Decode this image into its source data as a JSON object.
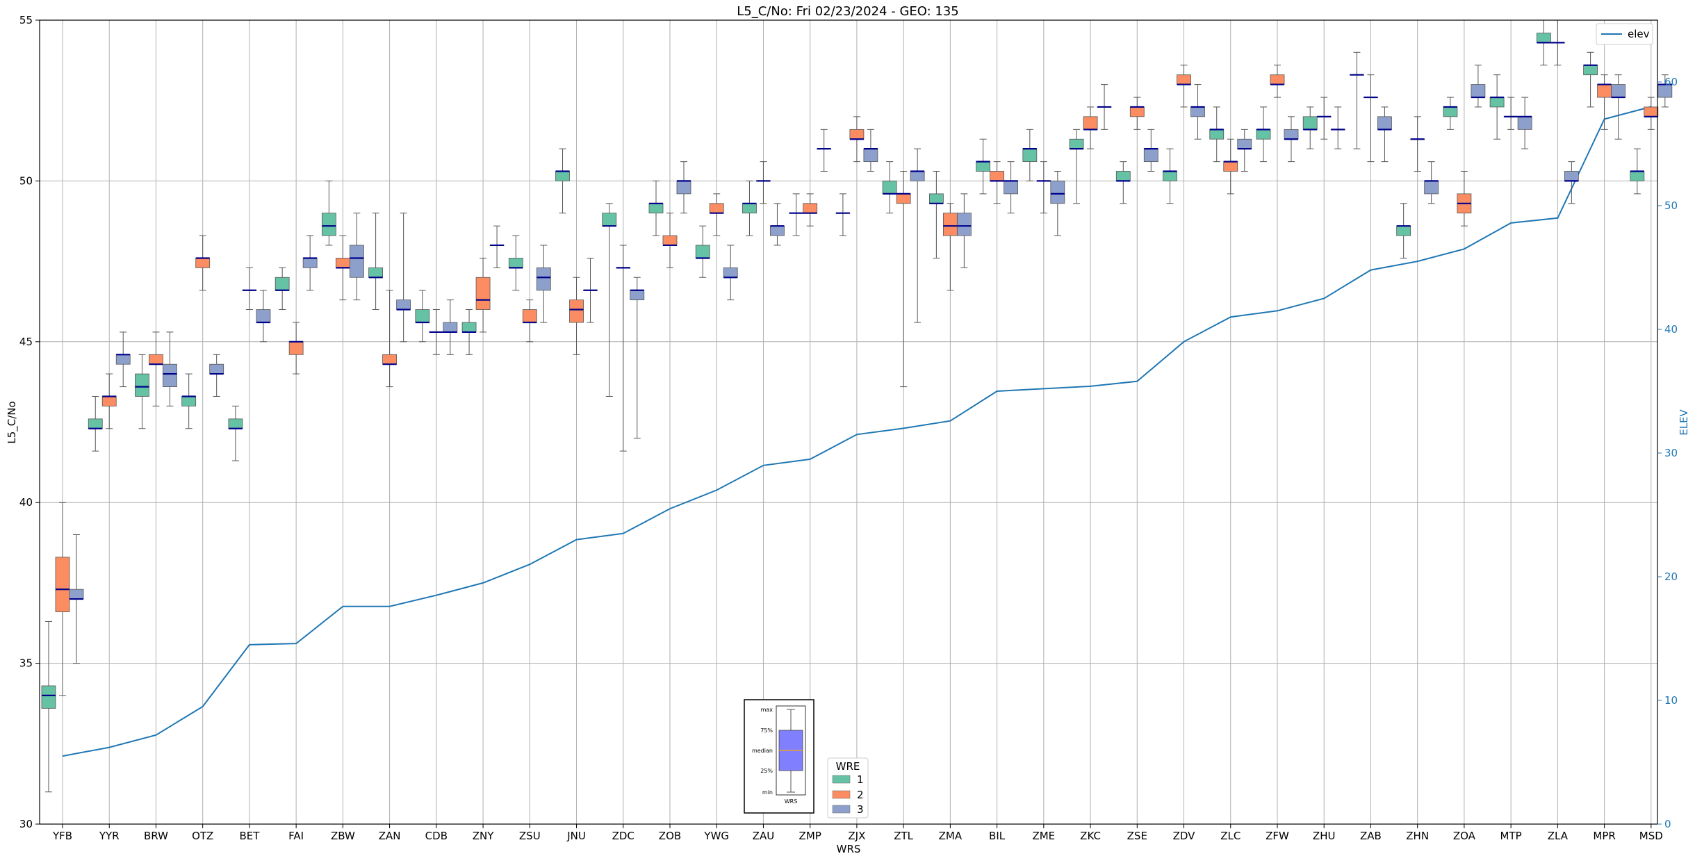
{
  "chart_data": {
    "type": "box",
    "title": "L5_C/No: Fri 02/23/2024 - GEO: 135",
    "xlabel": "WRS",
    "ylabel": "L5_C/No",
    "ylabel_right": "ELEV",
    "ylim": [
      30,
      55
    ],
    "ylim_right": [
      0,
      65
    ],
    "yticks": [
      "30",
      "35",
      "40",
      "45",
      "50",
      "55"
    ],
    "yticks_right": [
      "0",
      "10",
      "20",
      "30",
      "40",
      "50",
      "60"
    ],
    "grid": true,
    "categories": [
      "YFB",
      "YYR",
      "BRW",
      "OTZ",
      "BET",
      "FAI",
      "ZBW",
      "ZAN",
      "CDB",
      "ZNY",
      "ZSU",
      "JNU",
      "ZDC",
      "ZOB",
      "YWG",
      "ZAU",
      "ZMP",
      "ZJX",
      "ZTL",
      "ZMA",
      "BIL",
      "ZME",
      "ZKC",
      "ZSE",
      "ZDV",
      "ZLC",
      "ZFW",
      "ZHU",
      "ZAB",
      "ZHN",
      "ZOA",
      "MTP",
      "ZLA",
      "MPR",
      "MSD"
    ],
    "wre_colors": {
      "1": "#66c2a5",
      "2": "#fc8d62",
      "3": "#8da0cb"
    },
    "median_color": "#00008b",
    "legend": {
      "title": "WRE",
      "entries": [
        {
          "label": "1",
          "color": "#66c2a5"
        },
        {
          "label": "2",
          "color": "#fc8d62"
        },
        {
          "label": "3",
          "color": "#8da0cb"
        }
      ],
      "placement": "lower-center"
    },
    "legend_elev": {
      "label": "elev",
      "color": "#1f77b4",
      "placement": "top-right"
    },
    "key_box": {
      "labels": [
        "max",
        "75%",
        "median",
        "25%",
        "min"
      ],
      "xlabel": "WRS",
      "color": "#8080ff",
      "median_color": "#ffa500"
    },
    "boxes": [
      {
        "cat": "YFB",
        "wre": 1,
        "min": 31.0,
        "q1": 33.6,
        "med": 34.0,
        "q3": 34.3,
        "max": 36.3
      },
      {
        "cat": "YFB",
        "wre": 2,
        "min": 34.0,
        "q1": 36.6,
        "med": 37.3,
        "q3": 38.3,
        "max": 40.0
      },
      {
        "cat": "YFB",
        "wre": 3,
        "min": 35.0,
        "q1": 37.0,
        "med": 37.0,
        "q3": 37.3,
        "max": 39.0
      },
      {
        "cat": "YYR",
        "wre": 1,
        "min": 41.6,
        "q1": 42.3,
        "med": 42.3,
        "q3": 42.6,
        "max": 43.3
      },
      {
        "cat": "YYR",
        "wre": 2,
        "min": 42.3,
        "q1": 43.0,
        "med": 43.3,
        "q3": 43.3,
        "max": 44.0
      },
      {
        "cat": "YYR",
        "wre": 3,
        "min": 43.6,
        "q1": 44.3,
        "med": 44.6,
        "q3": 44.6,
        "max": 45.3
      },
      {
        "cat": "BRW",
        "wre": 1,
        "min": 42.3,
        "q1": 43.3,
        "med": 43.6,
        "q3": 44.0,
        "max": 44.6
      },
      {
        "cat": "BRW",
        "wre": 2,
        "min": 43.0,
        "q1": 44.3,
        "med": 44.3,
        "q3": 44.6,
        "max": 45.3
      },
      {
        "cat": "BRW",
        "wre": 3,
        "min": 43.0,
        "q1": 43.6,
        "med": 44.0,
        "q3": 44.3,
        "max": 45.3
      },
      {
        "cat": "OTZ",
        "wre": 1,
        "min": 42.3,
        "q1": 43.0,
        "med": 43.3,
        "q3": 43.3,
        "max": 44.0
      },
      {
        "cat": "OTZ",
        "wre": 2,
        "min": 46.6,
        "q1": 47.3,
        "med": 47.6,
        "q3": 47.6,
        "max": 48.3
      },
      {
        "cat": "OTZ",
        "wre": 3,
        "min": 43.3,
        "q1": 44.0,
        "med": 44.0,
        "q3": 44.3,
        "max": 44.6
      },
      {
        "cat": "BET",
        "wre": 1,
        "min": 41.3,
        "q1": 42.3,
        "med": 42.3,
        "q3": 42.6,
        "max": 43.0
      },
      {
        "cat": "BET",
        "wre": 2,
        "min": 46.0,
        "q1": 46.6,
        "med": 46.6,
        "q3": 46.6,
        "max": 47.3
      },
      {
        "cat": "BET",
        "wre": 3,
        "min": 45.0,
        "q1": 45.6,
        "med": 45.6,
        "q3": 46.0,
        "max": 46.6
      },
      {
        "cat": "FAI",
        "wre": 1,
        "min": 46.0,
        "q1": 46.6,
        "med": 46.6,
        "q3": 47.0,
        "max": 47.3
      },
      {
        "cat": "FAI",
        "wre": 2,
        "min": 44.0,
        "q1": 44.6,
        "med": 45.0,
        "q3": 45.0,
        "max": 45.6
      },
      {
        "cat": "FAI",
        "wre": 3,
        "min": 46.6,
        "q1": 47.3,
        "med": 47.6,
        "q3": 47.6,
        "max": 48.3
      },
      {
        "cat": "ZBW",
        "wre": 1,
        "min": 48.0,
        "q1": 48.3,
        "med": 48.6,
        "q3": 49.0,
        "max": 50.0
      },
      {
        "cat": "ZBW",
        "wre": 2,
        "min": 46.3,
        "q1": 47.3,
        "med": 47.3,
        "q3": 47.6,
        "max": 48.3
      },
      {
        "cat": "ZBW",
        "wre": 3,
        "min": 46.3,
        "q1": 47.0,
        "med": 47.6,
        "q3": 48.0,
        "max": 49.0
      },
      {
        "cat": "ZAN",
        "wre": 1,
        "min": 46.0,
        "q1": 47.0,
        "med": 47.0,
        "q3": 47.3,
        "max": 49.0
      },
      {
        "cat": "ZAN",
        "wre": 2,
        "min": 43.6,
        "q1": 44.3,
        "med": 44.3,
        "q3": 44.6,
        "max": 46.6
      },
      {
        "cat": "ZAN",
        "wre": 3,
        "min": 45.0,
        "q1": 46.0,
        "med": 46.0,
        "q3": 46.3,
        "max": 49.0
      },
      {
        "cat": "CDB",
        "wre": 1,
        "min": 45.0,
        "q1": 45.6,
        "med": 45.6,
        "q3": 46.0,
        "max": 46.6
      },
      {
        "cat": "CDB",
        "wre": 2,
        "min": 44.6,
        "q1": 45.3,
        "med": 45.3,
        "q3": 45.3,
        "max": 46.0
      },
      {
        "cat": "CDB",
        "wre": 3,
        "min": 44.6,
        "q1": 45.3,
        "med": 45.3,
        "q3": 45.6,
        "max": 46.3
      },
      {
        "cat": "ZNY",
        "wre": 1,
        "min": 44.6,
        "q1": 45.3,
        "med": 45.3,
        "q3": 45.6,
        "max": 46.0
      },
      {
        "cat": "ZNY",
        "wre": 2,
        "min": 45.3,
        "q1": 46.0,
        "med": 46.3,
        "q3": 47.0,
        "max": 47.6
      },
      {
        "cat": "ZNY",
        "wre": 3,
        "min": 47.3,
        "q1": 48.0,
        "med": 48.0,
        "q3": 48.0,
        "max": 48.6
      },
      {
        "cat": "ZSU",
        "wre": 1,
        "min": 46.6,
        "q1": 47.3,
        "med": 47.3,
        "q3": 47.6,
        "max": 48.3
      },
      {
        "cat": "ZSU",
        "wre": 2,
        "min": 45.0,
        "q1": 45.6,
        "med": 45.6,
        "q3": 46.0,
        "max": 46.3
      },
      {
        "cat": "ZSU",
        "wre": 3,
        "min": 45.6,
        "q1": 46.6,
        "med": 47.0,
        "q3": 47.3,
        "max": 48.0
      },
      {
        "cat": "JNU",
        "wre": 1,
        "min": 49.0,
        "q1": 50.0,
        "med": 50.3,
        "q3": 50.3,
        "max": 51.0
      },
      {
        "cat": "JNU",
        "wre": 2,
        "min": 44.6,
        "q1": 45.6,
        "med": 46.0,
        "q3": 46.3,
        "max": 47.0
      },
      {
        "cat": "JNU",
        "wre": 3,
        "min": 45.6,
        "q1": 46.6,
        "med": 46.6,
        "q3": 46.6,
        "max": 47.6
      },
      {
        "cat": "ZDC",
        "wre": 1,
        "min": 43.3,
        "q1": 48.6,
        "med": 48.6,
        "q3": 49.0,
        "max": 49.3
      },
      {
        "cat": "ZDC",
        "wre": 2,
        "min": 41.6,
        "q1": 47.3,
        "med": 47.3,
        "q3": 47.3,
        "max": 48.0
      },
      {
        "cat": "ZDC",
        "wre": 3,
        "min": 42.0,
        "q1": 46.3,
        "med": 46.6,
        "q3": 46.6,
        "max": 47.0
      },
      {
        "cat": "ZOB",
        "wre": 1,
        "min": 48.3,
        "q1": 49.0,
        "med": 49.3,
        "q3": 49.3,
        "max": 50.0
      },
      {
        "cat": "ZOB",
        "wre": 2,
        "min": 47.3,
        "q1": 48.0,
        "med": 48.0,
        "q3": 48.3,
        "max": 49.0
      },
      {
        "cat": "ZOB",
        "wre": 3,
        "min": 49.0,
        "q1": 49.6,
        "med": 50.0,
        "q3": 50.0,
        "max": 50.6
      },
      {
        "cat": "YWG",
        "wre": 1,
        "min": 47.0,
        "q1": 47.6,
        "med": 47.6,
        "q3": 48.0,
        "max": 48.6
      },
      {
        "cat": "YWG",
        "wre": 2,
        "min": 48.3,
        "q1": 49.0,
        "med": 49.0,
        "q3": 49.3,
        "max": 49.6
      },
      {
        "cat": "YWG",
        "wre": 3,
        "min": 46.3,
        "q1": 47.0,
        "med": 47.0,
        "q3": 47.3,
        "max": 48.0
      },
      {
        "cat": "ZAU",
        "wre": 1,
        "min": 48.3,
        "q1": 49.0,
        "med": 49.3,
        "q3": 49.3,
        "max": 50.0
      },
      {
        "cat": "ZAU",
        "wre": 2,
        "min": 49.3,
        "q1": 50.0,
        "med": 50.0,
        "q3": 50.0,
        "max": 50.6
      },
      {
        "cat": "ZAU",
        "wre": 3,
        "min": 48.0,
        "q1": 48.3,
        "med": 48.6,
        "q3": 48.6,
        "max": 49.3
      },
      {
        "cat": "ZMP",
        "wre": 1,
        "min": 48.3,
        "q1": 49.0,
        "med": 49.0,
        "q3": 49.0,
        "max": 49.6
      },
      {
        "cat": "ZMP",
        "wre": 2,
        "min": 48.6,
        "q1": 49.0,
        "med": 49.0,
        "q3": 49.3,
        "max": 49.6
      },
      {
        "cat": "ZMP",
        "wre": 3,
        "min": 50.3,
        "q1": 51.0,
        "med": 51.0,
        "q3": 51.0,
        "max": 51.6
      },
      {
        "cat": "ZJX",
        "wre": 1,
        "min": 48.3,
        "q1": 49.0,
        "med": 49.0,
        "q3": 49.0,
        "max": 49.6
      },
      {
        "cat": "ZJX",
        "wre": 2,
        "min": 50.6,
        "q1": 51.3,
        "med": 51.3,
        "q3": 51.6,
        "max": 52.0
      },
      {
        "cat": "ZJX",
        "wre": 3,
        "min": 50.3,
        "q1": 50.6,
        "med": 51.0,
        "q3": 51.0,
        "max": 51.6
      },
      {
        "cat": "ZTL",
        "wre": 1,
        "min": 49.0,
        "q1": 49.6,
        "med": 49.6,
        "q3": 50.0,
        "max": 50.6
      },
      {
        "cat": "ZTL",
        "wre": 2,
        "min": 43.6,
        "q1": 49.3,
        "med": 49.6,
        "q3": 49.6,
        "max": 50.3
      },
      {
        "cat": "ZTL",
        "wre": 3,
        "min": 45.6,
        "q1": 50.0,
        "med": 50.3,
        "q3": 50.3,
        "max": 51.0
      },
      {
        "cat": "ZMA",
        "wre": 1,
        "min": 47.6,
        "q1": 49.3,
        "med": 49.3,
        "q3": 49.6,
        "max": 50.3
      },
      {
        "cat": "ZMA",
        "wre": 2,
        "min": 46.6,
        "q1": 48.3,
        "med": 48.6,
        "q3": 49.0,
        "max": 49.3
      },
      {
        "cat": "ZMA",
        "wre": 3,
        "min": 47.3,
        "q1": 48.3,
        "med": 48.6,
        "q3": 49.0,
        "max": 49.6
      },
      {
        "cat": "BIL",
        "wre": 1,
        "min": 49.6,
        "q1": 50.3,
        "med": 50.6,
        "q3": 50.6,
        "max": 51.3
      },
      {
        "cat": "BIL",
        "wre": 2,
        "min": 49.3,
        "q1": 50.0,
        "med": 50.0,
        "q3": 50.3,
        "max": 50.6
      },
      {
        "cat": "BIL",
        "wre": 3,
        "min": 49.0,
        "q1": 49.6,
        "med": 50.0,
        "q3": 50.0,
        "max": 50.6
      },
      {
        "cat": "ZME",
        "wre": 1,
        "min": 50.0,
        "q1": 50.6,
        "med": 51.0,
        "q3": 51.0,
        "max": 51.6
      },
      {
        "cat": "ZME",
        "wre": 2,
        "min": 49.0,
        "q1": 50.0,
        "med": 50.0,
        "q3": 50.0,
        "max": 50.6
      },
      {
        "cat": "ZME",
        "wre": 3,
        "min": 48.3,
        "q1": 49.3,
        "med": 49.6,
        "q3": 50.0,
        "max": 50.3
      },
      {
        "cat": "ZKC",
        "wre": 1,
        "min": 49.3,
        "q1": 51.0,
        "med": 51.0,
        "q3": 51.3,
        "max": 51.6
      },
      {
        "cat": "ZKC",
        "wre": 2,
        "min": 51.0,
        "q1": 51.6,
        "med": 51.6,
        "q3": 52.0,
        "max": 52.3
      },
      {
        "cat": "ZKC",
        "wre": 3,
        "min": 51.6,
        "q1": 52.3,
        "med": 52.3,
        "q3": 52.3,
        "max": 53.0
      },
      {
        "cat": "ZSE",
        "wre": 1,
        "min": 49.3,
        "q1": 50.0,
        "med": 50.0,
        "q3": 50.3,
        "max": 50.6
      },
      {
        "cat": "ZSE",
        "wre": 2,
        "min": 51.6,
        "q1": 52.0,
        "med": 52.3,
        "q3": 52.3,
        "max": 52.6
      },
      {
        "cat": "ZSE",
        "wre": 3,
        "min": 50.3,
        "q1": 50.6,
        "med": 51.0,
        "q3": 51.0,
        "max": 51.6
      },
      {
        "cat": "ZDV",
        "wre": 1,
        "min": 49.3,
        "q1": 50.0,
        "med": 50.3,
        "q3": 50.3,
        "max": 51.0
      },
      {
        "cat": "ZDV",
        "wre": 2,
        "min": 52.3,
        "q1": 53.0,
        "med": 53.0,
        "q3": 53.3,
        "max": 53.6
      },
      {
        "cat": "ZDV",
        "wre": 3,
        "min": 51.3,
        "q1": 52.0,
        "med": 52.3,
        "q3": 52.3,
        "max": 53.0
      },
      {
        "cat": "ZLC",
        "wre": 1,
        "min": 50.6,
        "q1": 51.3,
        "med": 51.6,
        "q3": 51.6,
        "max": 52.3
      },
      {
        "cat": "ZLC",
        "wre": 2,
        "min": 49.6,
        "q1": 50.3,
        "med": 50.6,
        "q3": 50.6,
        "max": 51.3
      },
      {
        "cat": "ZLC",
        "wre": 3,
        "min": 50.3,
        "q1": 51.0,
        "med": 51.0,
        "q3": 51.3,
        "max": 51.6
      },
      {
        "cat": "ZFW",
        "wre": 1,
        "min": 50.6,
        "q1": 51.3,
        "med": 51.6,
        "q3": 51.6,
        "max": 52.3
      },
      {
        "cat": "ZFW",
        "wre": 2,
        "min": 52.6,
        "q1": 53.0,
        "med": 53.0,
        "q3": 53.3,
        "max": 53.6
      },
      {
        "cat": "ZFW",
        "wre": 3,
        "min": 50.6,
        "q1": 51.3,
        "med": 51.3,
        "q3": 51.6,
        "max": 52.0
      },
      {
        "cat": "ZHU",
        "wre": 1,
        "min": 51.0,
        "q1": 51.6,
        "med": 51.6,
        "q3": 52.0,
        "max": 52.3
      },
      {
        "cat": "ZHU",
        "wre": 2,
        "min": 51.3,
        "q1": 52.0,
        "med": 52.0,
        "q3": 52.0,
        "max": 52.6
      },
      {
        "cat": "ZHU",
        "wre": 3,
        "min": 51.0,
        "q1": 51.6,
        "med": 51.6,
        "q3": 51.6,
        "max": 52.3
      },
      {
        "cat": "ZAB",
        "wre": 1,
        "min": 51.0,
        "q1": 53.3,
        "med": 53.3,
        "q3": 53.3,
        "max": 54.0
      },
      {
        "cat": "ZAB",
        "wre": 2,
        "min": 50.6,
        "q1": 52.6,
        "med": 52.6,
        "q3": 52.6,
        "max": 53.3
      },
      {
        "cat": "ZAB",
        "wre": 3,
        "min": 50.6,
        "q1": 51.6,
        "med": 51.6,
        "q3": 52.0,
        "max": 52.3
      },
      {
        "cat": "ZHN",
        "wre": 1,
        "min": 47.6,
        "q1": 48.3,
        "med": 48.6,
        "q3": 48.6,
        "max": 49.3
      },
      {
        "cat": "ZHN",
        "wre": 2,
        "min": 50.3,
        "q1": 51.3,
        "med": 51.3,
        "q3": 51.3,
        "max": 52.0
      },
      {
        "cat": "ZHN",
        "wre": 3,
        "min": 49.3,
        "q1": 49.6,
        "med": 50.0,
        "q3": 50.0,
        "max": 50.6
      },
      {
        "cat": "ZOA",
        "wre": 1,
        "min": 51.6,
        "q1": 52.0,
        "med": 52.3,
        "q3": 52.3,
        "max": 52.6
      },
      {
        "cat": "ZOA",
        "wre": 2,
        "min": 48.6,
        "q1": 49.0,
        "med": 49.3,
        "q3": 49.6,
        "max": 50.3
      },
      {
        "cat": "ZOA",
        "wre": 3,
        "min": 52.3,
        "q1": 52.6,
        "med": 52.6,
        "q3": 53.0,
        "max": 53.6
      },
      {
        "cat": "MTP",
        "wre": 1,
        "min": 51.3,
        "q1": 52.3,
        "med": 52.6,
        "q3": 52.6,
        "max": 53.3
      },
      {
        "cat": "MTP",
        "wre": 2,
        "min": 51.6,
        "q1": 52.0,
        "med": 52.0,
        "q3": 52.0,
        "max": 52.6
      },
      {
        "cat": "MTP",
        "wre": 3,
        "min": 51.0,
        "q1": 51.6,
        "med": 52.0,
        "q3": 52.0,
        "max": 52.6
      },
      {
        "cat": "ZLA",
        "wre": 1,
        "min": 53.6,
        "q1": 54.3,
        "med": 54.3,
        "q3": 54.6,
        "max": 55.0
      },
      {
        "cat": "ZLA",
        "wre": 2,
        "min": 53.6,
        "q1": 54.3,
        "med": 54.3,
        "q3": 54.3,
        "max": 55.0
      },
      {
        "cat": "ZLA",
        "wre": 3,
        "min": 49.3,
        "q1": 50.0,
        "med": 50.0,
        "q3": 50.3,
        "max": 50.6
      },
      {
        "cat": "MPR",
        "wre": 1,
        "min": 52.3,
        "q1": 53.3,
        "med": 53.6,
        "q3": 53.6,
        "max": 54.0
      },
      {
        "cat": "MPR",
        "wre": 2,
        "min": 51.6,
        "q1": 52.6,
        "med": 53.0,
        "q3": 53.0,
        "max": 53.3
      },
      {
        "cat": "MPR",
        "wre": 3,
        "min": 51.3,
        "q1": 52.6,
        "med": 52.6,
        "q3": 53.0,
        "max": 53.3
      },
      {
        "cat": "MSD",
        "wre": 1,
        "min": 49.6,
        "q1": 50.0,
        "med": 50.3,
        "q3": 50.3,
        "max": 51.0
      },
      {
        "cat": "MSD",
        "wre": 2,
        "min": 51.6,
        "q1": 52.0,
        "med": 52.0,
        "q3": 52.3,
        "max": 52.6
      },
      {
        "cat": "MSD",
        "wre": 3,
        "min": 52.3,
        "q1": 52.6,
        "med": 53.0,
        "q3": 53.0,
        "max": 53.3
      }
    ],
    "elev_series": {
      "name": "elev",
      "values": [
        5.5,
        6.2,
        7.2,
        9.5,
        14.5,
        14.6,
        17.6,
        17.6,
        18.5,
        19.5,
        21.0,
        23.0,
        23.5,
        25.5,
        27.0,
        29.0,
        29.5,
        31.5,
        32.0,
        32.6,
        35.0,
        35.2,
        35.4,
        35.8,
        39.0,
        41.0,
        41.5,
        42.5,
        44.8,
        45.5,
        46.5,
        48.6,
        49.0,
        57.0,
        58.0
      ]
    }
  }
}
